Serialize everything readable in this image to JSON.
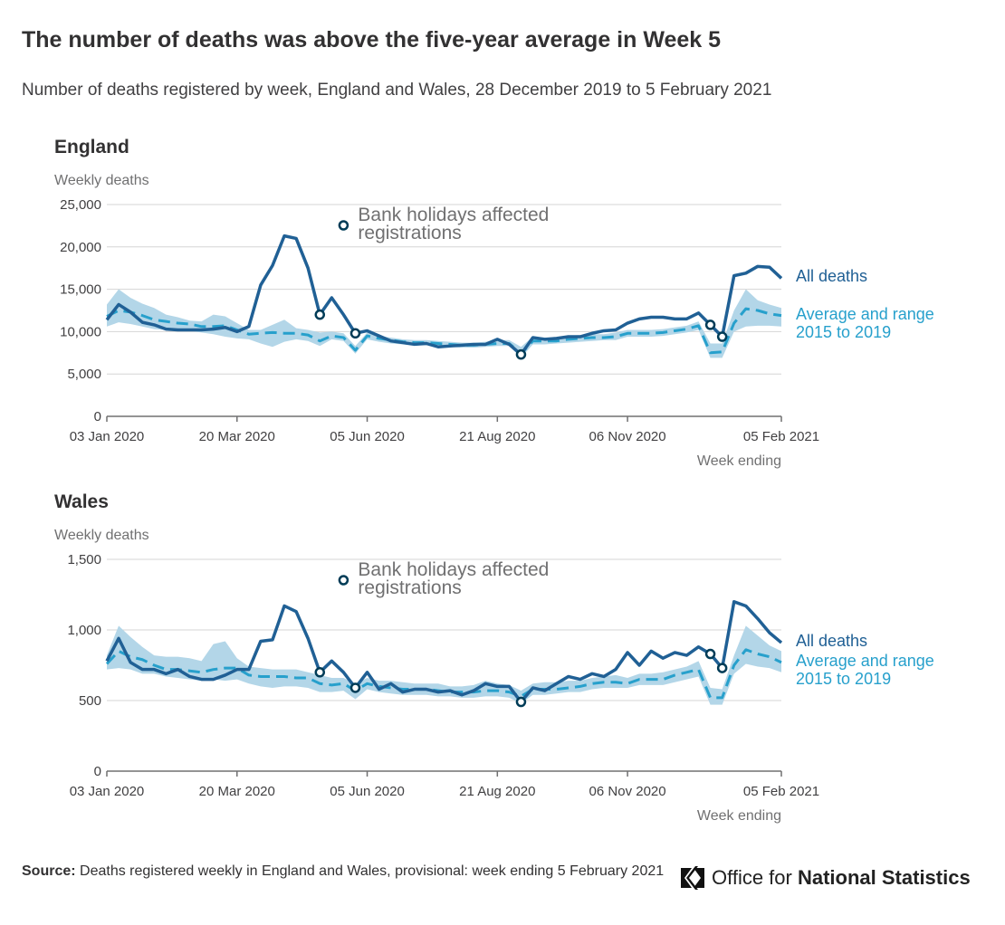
{
  "title": "The number of deaths was above the five-year average in Week 5",
  "subtitle": "Number of deaths registered by week, England and Wales, 28 December 2019 to 5 February 2021",
  "chart_data": [
    {
      "type": "line",
      "title": "England",
      "ylabel": "Weekly deaths",
      "xlabel": "Week ending",
      "x": [
        "03 Jan 2020",
        "10 Jan 2020",
        "17 Jan 2020",
        "24 Jan 2020",
        "31 Jan 2020",
        "07 Feb 2020",
        "14 Feb 2020",
        "21 Feb 2020",
        "28 Feb 2020",
        "06 Mar 2020",
        "13 Mar 2020",
        "20 Mar 2020",
        "27 Mar 2020",
        "03 Apr 2020",
        "10 Apr 2020",
        "17 Apr 2020",
        "24 Apr 2020",
        "01 May 2020",
        "08 May 2020",
        "15 May 2020",
        "22 May 2020",
        "29 May 2020",
        "05 Jun 2020",
        "12 Jun 2020",
        "19 Jun 2020",
        "26 Jun 2020",
        "03 Jul 2020",
        "10 Jul 2020",
        "17 Jul 2020",
        "24 Jul 2020",
        "31 Jul 2020",
        "07 Aug 2020",
        "14 Aug 2020",
        "21 Aug 2020",
        "28 Aug 2020",
        "04 Sep 2020",
        "11 Sep 2020",
        "18 Sep 2020",
        "25 Sep 2020",
        "02 Oct 2020",
        "09 Oct 2020",
        "16 Oct 2020",
        "23 Oct 2020",
        "30 Oct 2020",
        "06 Nov 2020",
        "13 Nov 2020",
        "20 Nov 2020",
        "27 Nov 2020",
        "04 Dec 2020",
        "11 Dec 2020",
        "18 Dec 2020",
        "25 Dec 2020",
        "01 Jan 2021",
        "08 Jan 2021",
        "15 Jan 2021",
        "22 Jan 2021",
        "29 Jan 2021",
        "05 Feb 2021"
      ],
      "xticks": [
        "03 Jan 2020",
        "20 Mar 2020",
        "05 Jun 2020",
        "21 Aug 2020",
        "06 Nov 2020",
        "05 Feb 2021"
      ],
      "ylim": [
        0,
        25000
      ],
      "yticks": [
        0,
        {
          "value": 5000,
          "label": "5,000"
        },
        {
          "value": 10000,
          "label": "10,000"
        },
        {
          "value": 15000,
          "label": "15,000"
        },
        {
          "value": 20000,
          "label": "20,000"
        },
        {
          "value": 25000,
          "label": "25,000"
        }
      ],
      "grid": true,
      "series": [
        {
          "name": "All deaths",
          "color": "#206095",
          "values": [
            11400,
            13200,
            12300,
            11100,
            10800,
            10300,
            10200,
            10200,
            10200,
            10300,
            10500,
            10000,
            10600,
            15500,
            17800,
            21300,
            21000,
            17500,
            12000,
            14000,
            12000,
            9800,
            10100,
            9500,
            8900,
            8700,
            8500,
            8600,
            8200,
            8300,
            8400,
            8500,
            8500,
            9100,
            8500,
            7300,
            9300,
            9100,
            9200,
            9400,
            9400,
            9800,
            10100,
            10200,
            11000,
            11500,
            11700,
            11700,
            11500,
            11500,
            12200,
            10800,
            9400,
            16600,
            16900,
            17700,
            17600,
            16300
          ]
        },
        {
          "name": "Average and range 2015 to 2019",
          "color": "#27a0cc",
          "range_color": "#b3d6e8",
          "values": [
            11800,
            12500,
            12300,
            11900,
            11400,
            11200,
            11000,
            10900,
            10600,
            10600,
            10700,
            10200,
            9700,
            9800,
            9900,
            9800,
            9800,
            9600,
            8900,
            9500,
            9300,
            7800,
            9500,
            9200,
            9000,
            8800,
            8700,
            8700,
            8600,
            8500,
            8400,
            8400,
            8500,
            8600,
            8600,
            7400,
            8900,
            8900,
            8900,
            9100,
            9200,
            9300,
            9300,
            9400,
            9800,
            9800,
            9800,
            9900,
            10100,
            10300,
            10700,
            7500,
            7600,
            11000,
            12700,
            12500,
            12100,
            11900
          ],
          "upper": [
            13200,
            15000,
            14000,
            13300,
            12800,
            12000,
            11700,
            11300,
            11200,
            12000,
            11800,
            11000,
            10200,
            10200,
            10800,
            11400,
            10400,
            10200,
            9900,
            10000,
            9800,
            8300,
            9900,
            9500,
            9300,
            9100,
            9000,
            9000,
            8900,
            8800,
            8700,
            8700,
            8800,
            9000,
            9000,
            8200,
            9400,
            9300,
            9300,
            9500,
            9600,
            9700,
            9700,
            9900,
            10200,
            10200,
            10200,
            10300,
            10500,
            10700,
            11200,
            8600,
            8600,
            12500,
            15000,
            13700,
            13200,
            12800
          ],
          "lower": [
            10600,
            11100,
            10900,
            10600,
            10300,
            10200,
            10200,
            10100,
            9900,
            9700,
            9400,
            9200,
            9100,
            8600,
            8200,
            8800,
            9100,
            8900,
            8300,
            9100,
            8900,
            7400,
            9100,
            8800,
            8600,
            8500,
            8400,
            8400,
            8300,
            8200,
            8100,
            8100,
            8200,
            8300,
            8300,
            6900,
            8500,
            8500,
            8600,
            8700,
            8800,
            8900,
            9000,
            9000,
            9400,
            9400,
            9400,
            9500,
            9700,
            9900,
            10200,
            6900,
            6900,
            10000,
            10600,
            10700,
            10700,
            10600
          ]
        }
      ],
      "annotation": {
        "text": "Bank holidays affected registrations",
        "dates": [
          "08 May 2020",
          "29 May 2020",
          "04 Sep 2020",
          "25 Dec 2020",
          "01 Jan 2021"
        ]
      }
    },
    {
      "type": "line",
      "title": "Wales",
      "ylabel": "Weekly deaths",
      "xlabel": "Week ending",
      "x": [
        "03 Jan 2020",
        "10 Jan 2020",
        "17 Jan 2020",
        "24 Jan 2020",
        "31 Jan 2020",
        "07 Feb 2020",
        "14 Feb 2020",
        "21 Feb 2020",
        "28 Feb 2020",
        "06 Mar 2020",
        "13 Mar 2020",
        "20 Mar 2020",
        "27 Mar 2020",
        "03 Apr 2020",
        "10 Apr 2020",
        "17 Apr 2020",
        "24 Apr 2020",
        "01 May 2020",
        "08 May 2020",
        "15 May 2020",
        "22 May 2020",
        "29 May 2020",
        "05 Jun 2020",
        "12 Jun 2020",
        "19 Jun 2020",
        "26 Jun 2020",
        "03 Jul 2020",
        "10 Jul 2020",
        "17 Jul 2020",
        "24 Jul 2020",
        "31 Jul 2020",
        "07 Aug 2020",
        "14 Aug 2020",
        "21 Aug 2020",
        "28 Aug 2020",
        "04 Sep 2020",
        "11 Sep 2020",
        "18 Sep 2020",
        "25 Sep 2020",
        "02 Oct 2020",
        "09 Oct 2020",
        "16 Oct 2020",
        "23 Oct 2020",
        "30 Oct 2020",
        "06 Nov 2020",
        "13 Nov 2020",
        "20 Nov 2020",
        "27 Nov 2020",
        "04 Dec 2020",
        "11 Dec 2020",
        "18 Dec 2020",
        "25 Dec 2020",
        "01 Jan 2021",
        "08 Jan 2021",
        "15 Jan 2021",
        "22 Jan 2021",
        "29 Jan 2021",
        "05 Feb 2021"
      ],
      "xticks": [
        "03 Jan 2020",
        "20 Mar 2020",
        "05 Jun 2020",
        "21 Aug 2020",
        "06 Nov 2020",
        "05 Feb 2021"
      ],
      "ylim": [
        0,
        1500
      ],
      "yticks": [
        0,
        500,
        {
          "value": 1000,
          "label": "1,000"
        },
        {
          "value": 1500,
          "label": "1,500"
        }
      ],
      "grid": true,
      "series": [
        {
          "name": "All deaths",
          "color": "#206095",
          "values": [
            780,
            940,
            770,
            720,
            720,
            690,
            720,
            670,
            650,
            650,
            680,
            720,
            720,
            920,
            930,
            1170,
            1130,
            940,
            700,
            780,
            700,
            590,
            700,
            580,
            620,
            560,
            580,
            580,
            560,
            570,
            540,
            570,
            620,
            600,
            600,
            490,
            590,
            570,
            620,
            670,
            650,
            690,
            670,
            720,
            840,
            750,
            850,
            800,
            840,
            820,
            880,
            830,
            730,
            1200,
            1170,
            1080,
            980,
            910
          ]
        },
        {
          "name": "Average and range 2015 to 2019",
          "color": "#27a0cc",
          "range_color": "#b3d6e8",
          "values": [
            760,
            850,
            810,
            790,
            750,
            720,
            720,
            710,
            700,
            720,
            730,
            730,
            680,
            670,
            670,
            670,
            660,
            660,
            620,
            610,
            620,
            570,
            620,
            600,
            590,
            580,
            580,
            580,
            570,
            560,
            560,
            560,
            570,
            570,
            560,
            530,
            580,
            580,
            580,
            590,
            600,
            620,
            630,
            630,
            620,
            650,
            650,
            650,
            680,
            700,
            720,
            520,
            520,
            750,
            860,
            830,
            810,
            770
          ],
          "upper": [
            820,
            1030,
            950,
            880,
            820,
            810,
            810,
            800,
            780,
            900,
            920,
            800,
            740,
            730,
            720,
            720,
            720,
            700,
            680,
            660,
            660,
            620,
            660,
            640,
            640,
            630,
            620,
            620,
            620,
            600,
            600,
            610,
            640,
            620,
            610,
            570,
            620,
            630,
            630,
            640,
            640,
            660,
            670,
            680,
            660,
            690,
            690,
            700,
            720,
            740,
            780,
            590,
            580,
            820,
            1030,
            960,
            890,
            850
          ],
          "lower": [
            720,
            730,
            720,
            690,
            690,
            670,
            660,
            650,
            640,
            650,
            640,
            650,
            620,
            600,
            590,
            600,
            600,
            590,
            560,
            560,
            570,
            510,
            580,
            560,
            550,
            540,
            540,
            540,
            530,
            530,
            520,
            520,
            530,
            530,
            520,
            480,
            540,
            540,
            550,
            560,
            560,
            580,
            590,
            590,
            590,
            610,
            610,
            610,
            630,
            650,
            670,
            470,
            470,
            690,
            760,
            740,
            730,
            700
          ]
        }
      ],
      "annotation": {
        "text": "Bank holidays affected registrations",
        "dates": [
          "08 May 2020",
          "29 May 2020",
          "04 Sep 2020",
          "25 Dec 2020",
          "01 Jan 2021"
        ]
      }
    }
  ],
  "source": {
    "label": "Source:",
    "text": "Deaths registered weekly in England and Wales, provisional: week ending 5 February 2021"
  },
  "logo": {
    "prefix": "Office for",
    "name": "National Statistics"
  }
}
